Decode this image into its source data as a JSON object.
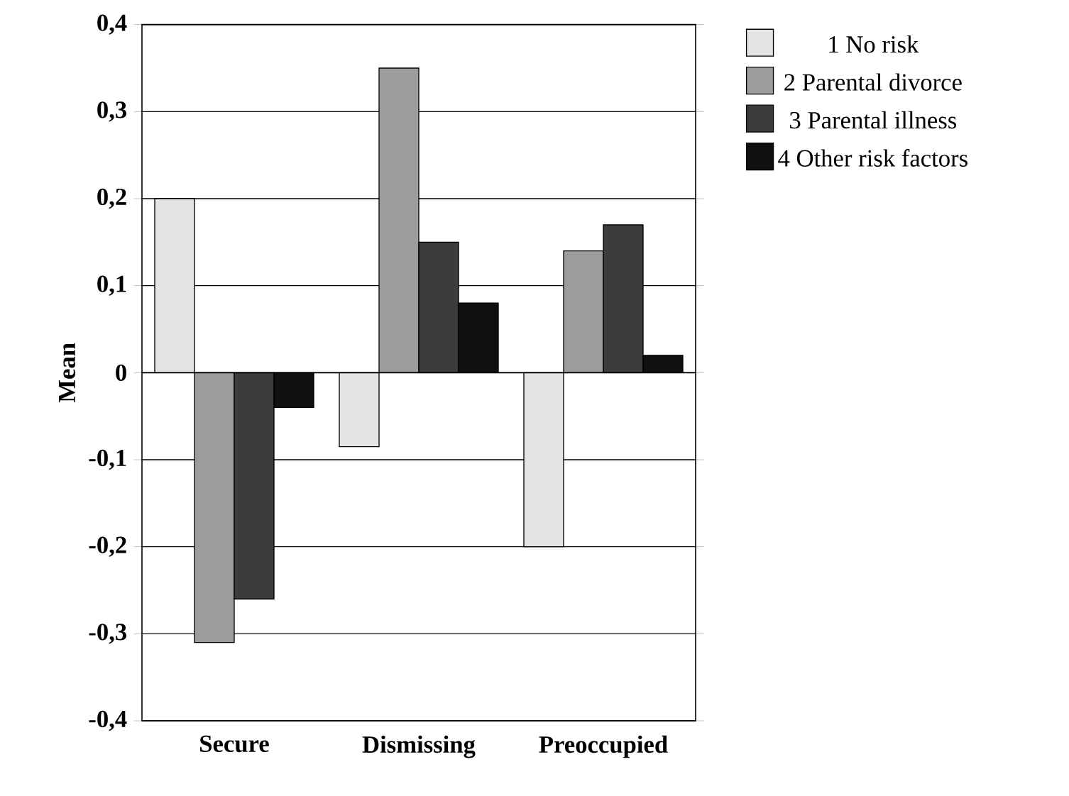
{
  "chart_data": {
    "type": "bar",
    "ylabel": "Mean",
    "categories": [
      "Secure",
      "Dismissing",
      "Preoccupied"
    ],
    "series": [
      {
        "name": "1 No risk",
        "color": "#e4e4e4",
        "values": [
          0.2,
          -0.085,
          -0.2
        ]
      },
      {
        "name": "2 Parental divorce",
        "color": "#9c9c9c",
        "values": [
          -0.31,
          0.35,
          0.14
        ]
      },
      {
        "name": "3 Parental illness",
        "color": "#3c3c3c",
        "values": [
          -0.26,
          0.15,
          0.17
        ]
      },
      {
        "name": "4 Other risk factors",
        "color": "#101010",
        "values": [
          -0.04,
          0.08,
          0.02
        ]
      }
    ],
    "ylim": [
      -0.4,
      0.4
    ],
    "yticks": [
      {
        "value": -0.4,
        "label": "-0,4"
      },
      {
        "value": -0.3,
        "label": "-0,3"
      },
      {
        "value": -0.2,
        "label": "-0,2"
      },
      {
        "value": -0.1,
        "label": "-0,1"
      },
      {
        "value": 0,
        "label": "0"
      },
      {
        "value": 0.1,
        "label": "0,1"
      },
      {
        "value": 0.2,
        "label": "0,2"
      },
      {
        "value": 0.3,
        "label": "0,3"
      },
      {
        "value": 0.4,
        "label": "0,4"
      }
    ],
    "grid": "y",
    "legend": "right"
  }
}
